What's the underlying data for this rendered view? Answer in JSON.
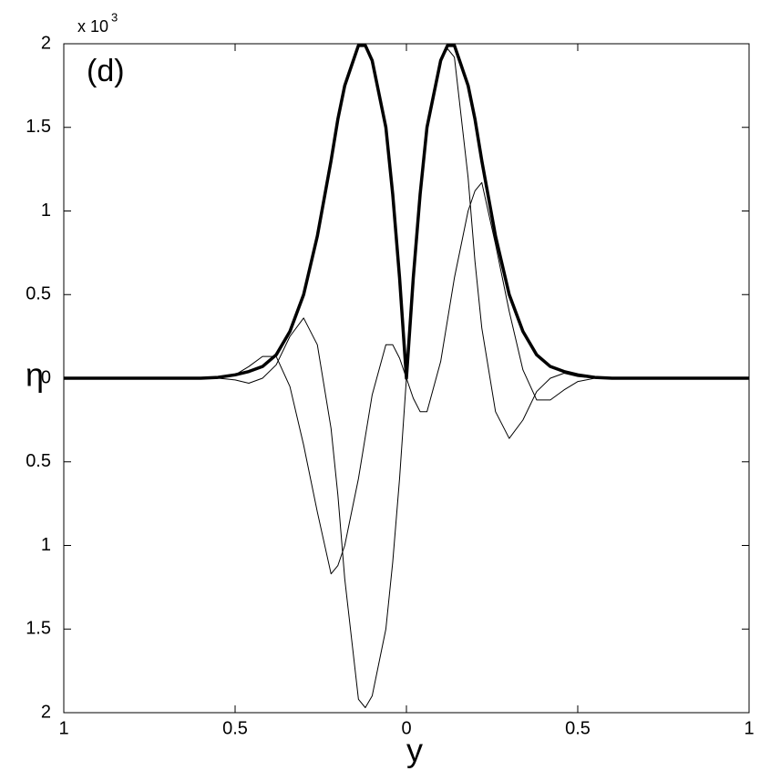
{
  "chart_data": {
    "type": "line",
    "panel_label": "(d)",
    "x_label": "y",
    "y_label": "η",
    "y_multiplier": "x 10",
    "y_multiplier_exponent": "3",
    "x": [
      -1,
      -0.6,
      -0.55,
      -0.5,
      -0.46,
      -0.42,
      -0.38,
      -0.34,
      -0.3,
      -0.26,
      -0.22,
      -0.2,
      -0.18,
      -0.14,
      -0.12,
      -0.1,
      -0.06,
      -0.04,
      -0.02,
      0,
      0.02,
      0.04,
      0.06,
      0.1,
      0.12,
      0.14,
      0.18,
      0.2,
      0.22,
      0.26,
      0.3,
      0.34,
      0.38,
      0.42,
      0.46,
      0.5,
      0.55,
      0.6,
      1
    ],
    "series": [
      {
        "color": "#000000",
        "line_width": 1,
        "values": [
          0,
          0,
          0,
          0.02,
          0.07,
          0.13,
          0.13,
          -0.05,
          -0.4,
          -0.8,
          -1.17,
          -1.12,
          -1.0,
          -0.6,
          -0.35,
          -0.1,
          0.2,
          0.2,
          0.12,
          0,
          -0.12,
          -0.2,
          -0.2,
          0.1,
          0.35,
          0.6,
          1.0,
          1.12,
          1.17,
          0.8,
          0.4,
          0.05,
          -0.13,
          -0.13,
          -0.07,
          -0.02,
          0,
          0,
          0
        ]
      },
      {
        "color": "#000000",
        "line_width": 1,
        "values": [
          0,
          0,
          0,
          -0.01,
          -0.03,
          0,
          0.08,
          0.25,
          0.36,
          0.2,
          -0.3,
          -0.7,
          -1.2,
          -1.92,
          -1.97,
          -1.9,
          -1.5,
          -1.1,
          -0.6,
          0,
          0.6,
          1.1,
          1.5,
          1.9,
          1.97,
          1.92,
          1.2,
          0.7,
          0.3,
          -0.2,
          -0.36,
          -0.25,
          -0.08,
          0,
          0.03,
          0.01,
          0,
          0,
          0
        ]
      },
      {
        "color": "#000000",
        "line_width": 3.5,
        "values": [
          0,
          0,
          0.005,
          0.02,
          0.04,
          0.07,
          0.14,
          0.28,
          0.5,
          0.85,
          1.3,
          1.55,
          1.75,
          1.99,
          1.99,
          1.9,
          1.5,
          1.1,
          0.6,
          0,
          0.6,
          1.1,
          1.5,
          1.9,
          1.99,
          1.99,
          1.75,
          1.55,
          1.3,
          0.85,
          0.5,
          0.28,
          0.14,
          0.07,
          0.04,
          0.02,
          0.005,
          0,
          0
        ]
      }
    ],
    "xlim": [
      -1,
      1
    ],
    "ylim": [
      -2,
      2
    ],
    "xticks": [
      {
        "value": -1,
        "label": "1"
      },
      {
        "value": -0.5,
        "label": "0.5"
      },
      0,
      0.5,
      1
    ],
    "yticks": [
      {
        "value": -2,
        "label": "2"
      },
      {
        "value": -1.5,
        "label": "1.5"
      },
      {
        "value": -1,
        "label": "1"
      },
      {
        "value": -0.5,
        "label": "0.5"
      },
      0,
      0.5,
      1,
      1.5,
      2
    ],
    "grid": false
  }
}
